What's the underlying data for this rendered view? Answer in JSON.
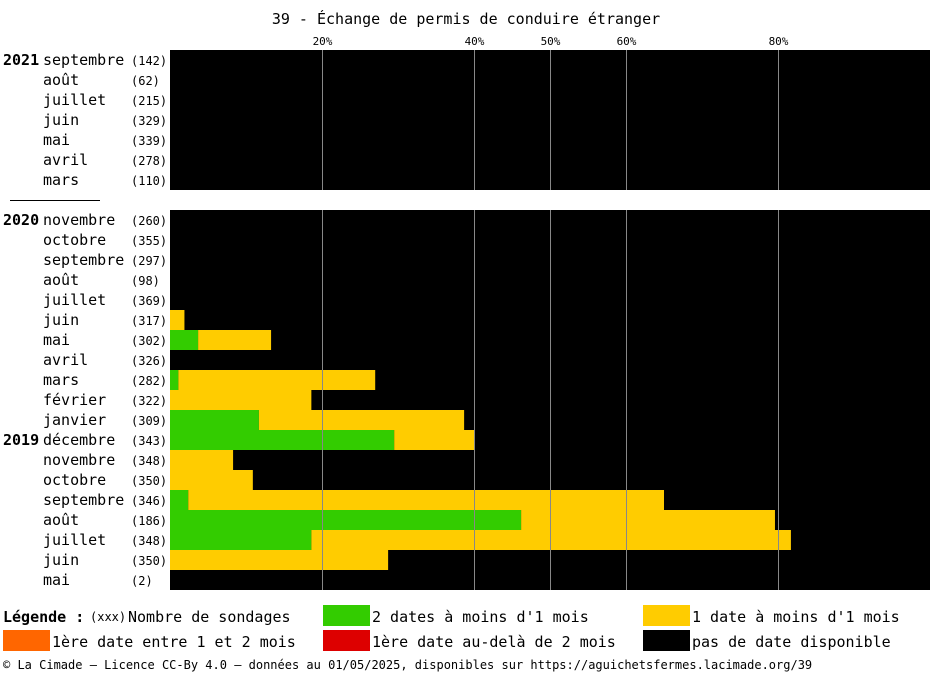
{
  "chart_data": {
    "type": "bar",
    "orientation": "horizontal-stacked",
    "title": "39 - Échange de permis de conduire étranger",
    "x_ticks": [
      {
        "value": 20,
        "label": "20%"
      },
      {
        "value": 40,
        "label": "40%"
      },
      {
        "value": 50,
        "label": "50%"
      },
      {
        "value": 60,
        "label": "60%"
      },
      {
        "value": 80,
        "label": "80%"
      }
    ],
    "xlim": [
      0,
      100
    ],
    "grid": true,
    "groups": [
      {
        "rows": [
          {
            "year": "2021",
            "month": "septembre",
            "count": "(142)",
            "green": 0,
            "yellow": 0
          },
          {
            "year": "",
            "month": "août",
            "count": "(62)",
            "green": 0,
            "yellow": 0
          },
          {
            "year": "",
            "month": "juillet",
            "count": "(215)",
            "green": 0,
            "yellow": 0
          },
          {
            "year": "",
            "month": "juin",
            "count": "(329)",
            "green": 0,
            "yellow": 0
          },
          {
            "year": "",
            "month": "mai",
            "count": "(339)",
            "green": 0,
            "yellow": 0
          },
          {
            "year": "",
            "month": "avril",
            "count": "(278)",
            "green": 0,
            "yellow": 0
          },
          {
            "year": "",
            "month": "mars",
            "count": "(110)",
            "green": 0,
            "yellow": 0
          }
        ]
      },
      {
        "rows": [
          {
            "year": "2020",
            "month": "novembre",
            "count": "(260)",
            "green": 0,
            "yellow": 0
          },
          {
            "year": "",
            "month": "octobre",
            "count": "(355)",
            "green": 0,
            "yellow": 0
          },
          {
            "year": "",
            "month": "septembre",
            "count": "(297)",
            "green": 0,
            "yellow": 0
          },
          {
            "year": "",
            "month": "août",
            "count": "(98)",
            "green": 0,
            "yellow": 0
          },
          {
            "year": "",
            "month": "juillet",
            "count": "(369)",
            "green": 0,
            "yellow": 0
          },
          {
            "year": "",
            "month": "juin",
            "count": "(317)",
            "green": 0,
            "yellow": 1.9
          },
          {
            "year": "",
            "month": "mai",
            "count": "(302)",
            "green": 3.7,
            "yellow": 9.6
          },
          {
            "year": "",
            "month": "avril",
            "count": "(326)",
            "green": 0,
            "yellow": 0
          },
          {
            "year": "",
            "month": "mars",
            "count": "(282)",
            "green": 1.1,
            "yellow": 25.9
          },
          {
            "year": "",
            "month": "février",
            "count": "(322)",
            "green": 0,
            "yellow": 18.6
          },
          {
            "year": "",
            "month": "janvier",
            "count": "(309)",
            "green": 11.7,
            "yellow": 27.0
          },
          {
            "year": "2019",
            "month": "décembre",
            "count": "(343)",
            "green": 29.5,
            "yellow": 10.5
          },
          {
            "year": "",
            "month": "novembre",
            "count": "(348)",
            "green": 0,
            "yellow": 8.3
          },
          {
            "year": "",
            "month": "octobre",
            "count": "(350)",
            "green": 0,
            "yellow": 10.9
          },
          {
            "year": "",
            "month": "septembre",
            "count": "(346)",
            "green": 2.4,
            "yellow": 62.6
          },
          {
            "year": "",
            "month": "août",
            "count": "(186)",
            "green": 46.2,
            "yellow": 33.4
          },
          {
            "year": "",
            "month": "juillet",
            "count": "(348)",
            "green": 18.6,
            "yellow": 63.1
          },
          {
            "year": "",
            "month": "juin",
            "count": "(350)",
            "green": 0,
            "yellow": 28.7
          },
          {
            "year": "",
            "month": "mai",
            "count": "(2)",
            "green": 0,
            "yellow": 0
          }
        ]
      }
    ]
  },
  "colors": {
    "green": "#33cc00",
    "yellow": "#ffcc00",
    "orange": "#ff6600",
    "red": "#dd0000",
    "black": "#000000",
    "grid": "#888888"
  },
  "legend": {
    "heading": "Légende :",
    "count_key": "(xxx)",
    "count_label": "Nombre de sondages",
    "green_label": "2 dates à moins d'1 mois",
    "yellow_label": "1 date à moins d'1 mois",
    "orange_label": "1ère date entre 1 et 2 mois",
    "red_label": "1ère date au-delà de 2 mois",
    "black_label": "pas de date disponible"
  },
  "footer": "© La Cimade – Licence CC-By 4.0 – données au 01/05/2025, disponibles sur https://aguichetsfermes.lacimade.org/39"
}
